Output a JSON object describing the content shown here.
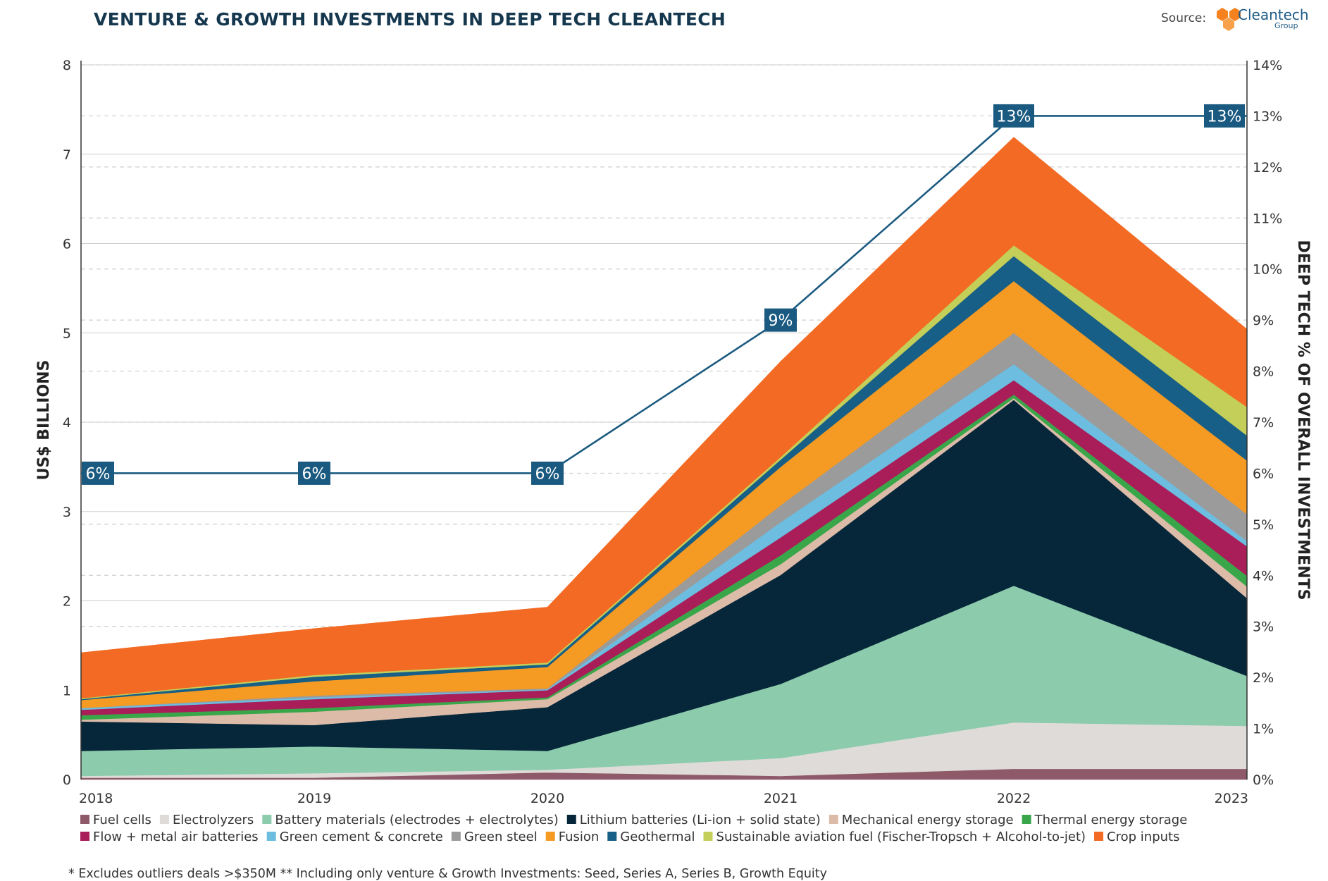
{
  "header": {
    "title": "VENTURE & GROWTH INVESTMENTS IN DEEP TECH CLEANTECH",
    "source_label": "Source:",
    "logo_name": "Cleantech",
    "logo_sub": "Group"
  },
  "footnote": "* Excludes outliers deals >$350M  ** Including only venture & Growth Investments: Seed, Series A, Series B, Growth Equity",
  "colors": {
    "line": "#1b5a80",
    "label_box": "#1b5a80",
    "grid": "#cfcfcf",
    "axis": "#333333"
  },
  "chart_data": {
    "type": "area",
    "stacked": true,
    "title": "VENTURE & GROWTH INVESTMENTS IN DEEP TECH CLEANTECH",
    "ylabel": "US$ BILLIONS",
    "y2label": "DEEP TECH % OF OVERALL INVESTMENTS",
    "categories": [
      "2018",
      "2019",
      "2020",
      "2021",
      "2022",
      "2023"
    ],
    "ylim": [
      0,
      8
    ],
    "yticks": [
      "0",
      "1",
      "2",
      "3",
      "4",
      "5",
      "6",
      "7",
      "8"
    ],
    "y2lim": [
      0,
      14
    ],
    "y2ticks": [
      "0%",
      "1%",
      "2%",
      "3%",
      "4%",
      "5%",
      "6%",
      "7%",
      "8%",
      "9%",
      "10%",
      "11%",
      "12%",
      "13%",
      "14%"
    ],
    "series": [
      {
        "name": "Fuel cells",
        "color": "#8e5a6a",
        "values": [
          0.02,
          0.02,
          0.08,
          0.04,
          0.12,
          0.12
        ]
      },
      {
        "name": "Electrolyzers",
        "color": "#dedbd8",
        "values": [
          0.02,
          0.05,
          0.03,
          0.2,
          0.52,
          0.48
        ]
      },
      {
        "name": "Battery materials (electrodes + electrolytes)",
        "color": "#8ccbac",
        "values": [
          0.28,
          0.3,
          0.21,
          0.83,
          1.53,
          0.56
        ]
      },
      {
        "name": "Lithium batteries (Li-ion + solid state)",
        "color": "#06263a",
        "values": [
          0.33,
          0.24,
          0.49,
          1.22,
          2.08,
          0.87
        ]
      },
      {
        "name": "Mechanical energy storage",
        "color": "#dcbca8",
        "values": [
          0.02,
          0.15,
          0.09,
          0.12,
          0.02,
          0.13
        ]
      },
      {
        "name": "Thermal energy storage",
        "color": "#3aa64a",
        "values": [
          0.05,
          0.04,
          0.02,
          0.1,
          0.04,
          0.12
        ]
      },
      {
        "name": "Flow + metal air batteries",
        "color": "#a91e58",
        "values": [
          0.06,
          0.1,
          0.08,
          0.2,
          0.16,
          0.33
        ]
      },
      {
        "name": "Green cement & concrete",
        "color": "#6cbde0",
        "values": [
          0.02,
          0.02,
          0.01,
          0.17,
          0.18,
          0.06
        ]
      },
      {
        "name": "Green steel",
        "color": "#9b9b9b",
        "values": [
          0.0,
          0.02,
          0.01,
          0.19,
          0.35,
          0.3
        ]
      },
      {
        "name": "Fusion",
        "color": "#f59a23",
        "values": [
          0.09,
          0.16,
          0.24,
          0.43,
          0.58,
          0.6
        ]
      },
      {
        "name": "Geothermal",
        "color": "#175f86",
        "values": [
          0.01,
          0.05,
          0.03,
          0.08,
          0.28,
          0.28
        ]
      },
      {
        "name": "Sustainable aviation fuel (Fischer-Tropsch + Alcohol-to-jet)",
        "color": "#c4cf5a",
        "values": [
          0.01,
          0.02,
          0.02,
          0.03,
          0.12,
          0.32
        ]
      },
      {
        "name": "Crop inputs",
        "color": "#f26a23",
        "values": [
          0.51,
          0.52,
          0.62,
          1.07,
          1.21,
          0.87
        ]
      }
    ],
    "secondary_line": {
      "name": "Deep tech % of overall investments",
      "values": [
        6,
        6,
        6,
        9,
        13,
        13
      ],
      "labels": [
        "6%",
        "6%",
        "6%",
        "9%",
        "13%",
        "13%"
      ]
    }
  }
}
